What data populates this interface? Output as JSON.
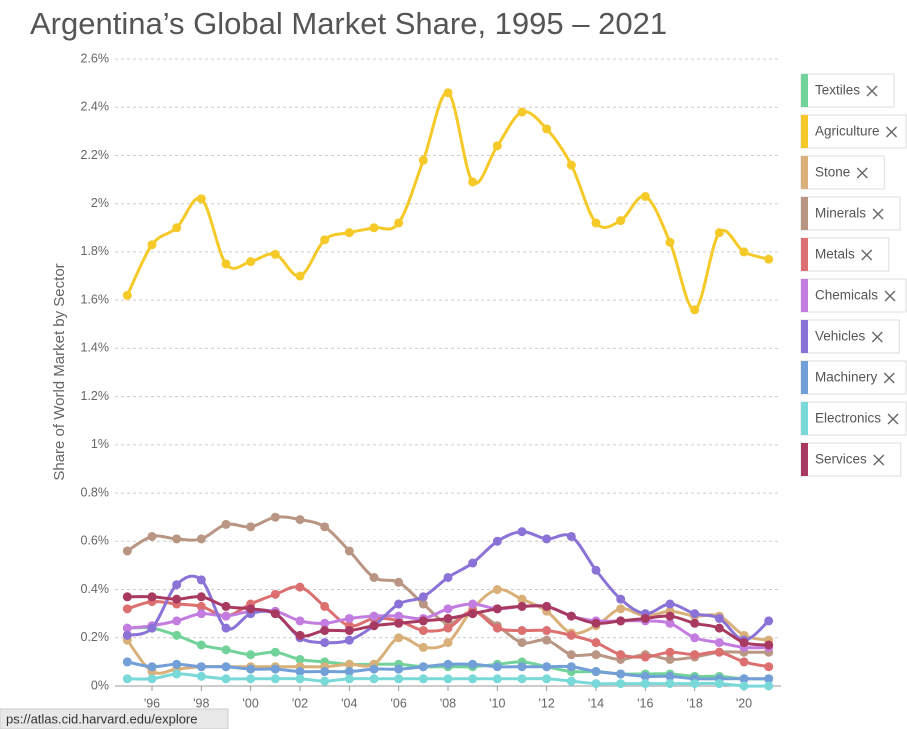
{
  "chart_data": {
    "type": "line",
    "title": "Argentina’s Global Market Share, 1995 – 2021",
    "y_label": "Share of World Market by Sector",
    "x": [
      1995,
      1996,
      1997,
      1998,
      1999,
      2000,
      2001,
      2002,
      2003,
      2004,
      2005,
      2006,
      2007,
      2008,
      2009,
      2010,
      2011,
      2012,
      2013,
      2014,
      2015,
      2016,
      2017,
      2018,
      2019,
      2020,
      2021
    ],
    "xlim": [
      1994.5,
      2021.5
    ],
    "xticks": [
      {
        "value": 1996,
        "label": "'96"
      },
      {
        "value": 1998,
        "label": "'98"
      },
      {
        "value": 2000,
        "label": "'00"
      },
      {
        "value": 2002,
        "label": "'02"
      },
      {
        "value": 2004,
        "label": "'04"
      },
      {
        "value": 2006,
        "label": "'06"
      },
      {
        "value": 2008,
        "label": "'08"
      },
      {
        "value": 2010,
        "label": "'10"
      },
      {
        "value": 2012,
        "label": "'12"
      },
      {
        "value": 2014,
        "label": "'14"
      },
      {
        "value": 2016,
        "label": "'16"
      },
      {
        "value": 2018,
        "label": "'18"
      },
      {
        "value": 2020,
        "label": "'20"
      }
    ],
    "ylim": [
      0,
      2.6
    ],
    "yticks": [
      {
        "value": 0,
        "label": "0%"
      },
      {
        "value": 0.2,
        "label": "0.2%"
      },
      {
        "value": 0.4,
        "label": "0.4%"
      },
      {
        "value": 0.6,
        "label": "0.6%"
      },
      {
        "value": 0.8,
        "label": "0.8%"
      },
      {
        "value": 1,
        "label": "1%"
      },
      {
        "value": 1.2,
        "label": "1.2%"
      },
      {
        "value": 1.4,
        "label": "1.4%"
      },
      {
        "value": 1.6,
        "label": "1.6%"
      },
      {
        "value": 1.8,
        "label": "1.8%"
      },
      {
        "value": 2,
        "label": "2%"
      },
      {
        "value": 2.2,
        "label": "2.2%"
      },
      {
        "value": 2.4,
        "label": "2.4%"
      },
      {
        "value": 2.6,
        "label": "2.6%"
      }
    ],
    "grid": true,
    "legend": "right",
    "series": [
      {
        "name": "Textiles",
        "color": "#72d39a",
        "values": [
          0.24,
          0.24,
          0.21,
          0.17,
          0.15,
          0.13,
          0.14,
          0.11,
          0.1,
          0.09,
          0.09,
          0.09,
          0.08,
          0.08,
          0.08,
          0.09,
          0.1,
          0.08,
          0.06,
          0.06,
          0.05,
          0.05,
          0.05,
          0.04,
          0.04,
          0.03,
          0.03
        ]
      },
      {
        "name": "Agriculture",
        "color": "#f5c928",
        "values": [
          1.62,
          1.83,
          1.9,
          2.02,
          1.75,
          1.76,
          1.79,
          1.7,
          1.85,
          1.88,
          1.9,
          1.92,
          2.18,
          2.46,
          2.09,
          2.24,
          2.38,
          2.31,
          2.16,
          1.92,
          1.93,
          2.03,
          1.84,
          1.56,
          1.88,
          1.8,
          1.77
        ]
      },
      {
        "name": "Stone",
        "color": "#d9b07a",
        "values": [
          0.19,
          0.06,
          0.07,
          0.08,
          0.08,
          0.08,
          0.08,
          0.08,
          0.08,
          0.09,
          0.09,
          0.2,
          0.16,
          0.18,
          0.32,
          0.4,
          0.36,
          0.31,
          0.22,
          0.25,
          0.32,
          0.29,
          0.31,
          0.29,
          0.29,
          0.21,
          0.19
        ]
      },
      {
        "name": "Minerals",
        "color": "#b99683",
        "values": [
          0.56,
          0.62,
          0.61,
          0.61,
          0.67,
          0.66,
          0.7,
          0.69,
          0.66,
          0.56,
          0.45,
          0.43,
          0.34,
          0.26,
          0.31,
          0.25,
          0.18,
          0.19,
          0.13,
          0.13,
          0.11,
          0.13,
          0.11,
          0.12,
          0.14,
          0.14,
          0.14
        ]
      },
      {
        "name": "Metals",
        "color": "#dc7070",
        "values": [
          0.32,
          0.35,
          0.34,
          0.33,
          0.29,
          0.34,
          0.38,
          0.41,
          0.33,
          0.25,
          0.28,
          0.27,
          0.23,
          0.24,
          0.31,
          0.24,
          0.23,
          0.23,
          0.21,
          0.18,
          0.13,
          0.12,
          0.14,
          0.13,
          0.14,
          0.1,
          0.08
        ]
      },
      {
        "name": "Chemicals",
        "color": "#c37de0",
        "values": [
          0.24,
          0.25,
          0.27,
          0.3,
          0.29,
          0.31,
          0.31,
          0.27,
          0.26,
          0.28,
          0.29,
          0.29,
          0.28,
          0.32,
          0.34,
          0.32,
          0.33,
          0.33,
          0.29,
          0.27,
          0.27,
          0.27,
          0.26,
          0.2,
          0.18,
          0.16,
          0.16
        ]
      },
      {
        "name": "Vehicles",
        "color": "#8b72d6",
        "values": [
          0.21,
          0.24,
          0.42,
          0.44,
          0.24,
          0.3,
          0.3,
          0.2,
          0.18,
          0.19,
          0.25,
          0.34,
          0.37,
          0.45,
          0.51,
          0.6,
          0.64,
          0.61,
          0.62,
          0.48,
          0.36,
          0.3,
          0.34,
          0.3,
          0.28,
          0.19,
          0.27
        ]
      },
      {
        "name": "Machinery",
        "color": "#739fd8",
        "values": [
          0.1,
          0.08,
          0.09,
          0.08,
          0.08,
          0.07,
          0.07,
          0.06,
          0.06,
          0.06,
          0.07,
          0.07,
          0.08,
          0.09,
          0.09,
          0.08,
          0.08,
          0.08,
          0.08,
          0.06,
          0.05,
          0.04,
          0.04,
          0.03,
          0.03,
          0.03,
          0.03
        ]
      },
      {
        "name": "Electronics",
        "color": "#79d9d9",
        "values": [
          0.03,
          0.03,
          0.05,
          0.04,
          0.03,
          0.03,
          0.03,
          0.03,
          0.02,
          0.03,
          0.03,
          0.03,
          0.03,
          0.03,
          0.03,
          0.03,
          0.03,
          0.03,
          0.02,
          0.01,
          0.01,
          0.01,
          0.01,
          0.01,
          0.01,
          0.0,
          0.0
        ]
      },
      {
        "name": "Services",
        "color": "#a83a62",
        "values": [
          0.37,
          0.37,
          0.36,
          0.37,
          0.33,
          0.32,
          0.3,
          0.21,
          0.23,
          0.23,
          0.25,
          0.26,
          0.27,
          0.28,
          0.3,
          0.32,
          0.33,
          0.33,
          0.29,
          0.26,
          0.27,
          0.28,
          0.29,
          0.26,
          0.24,
          0.18,
          0.17
        ]
      }
    ]
  },
  "status_url": "ps://atlas.cid.harvard.edu/explore"
}
